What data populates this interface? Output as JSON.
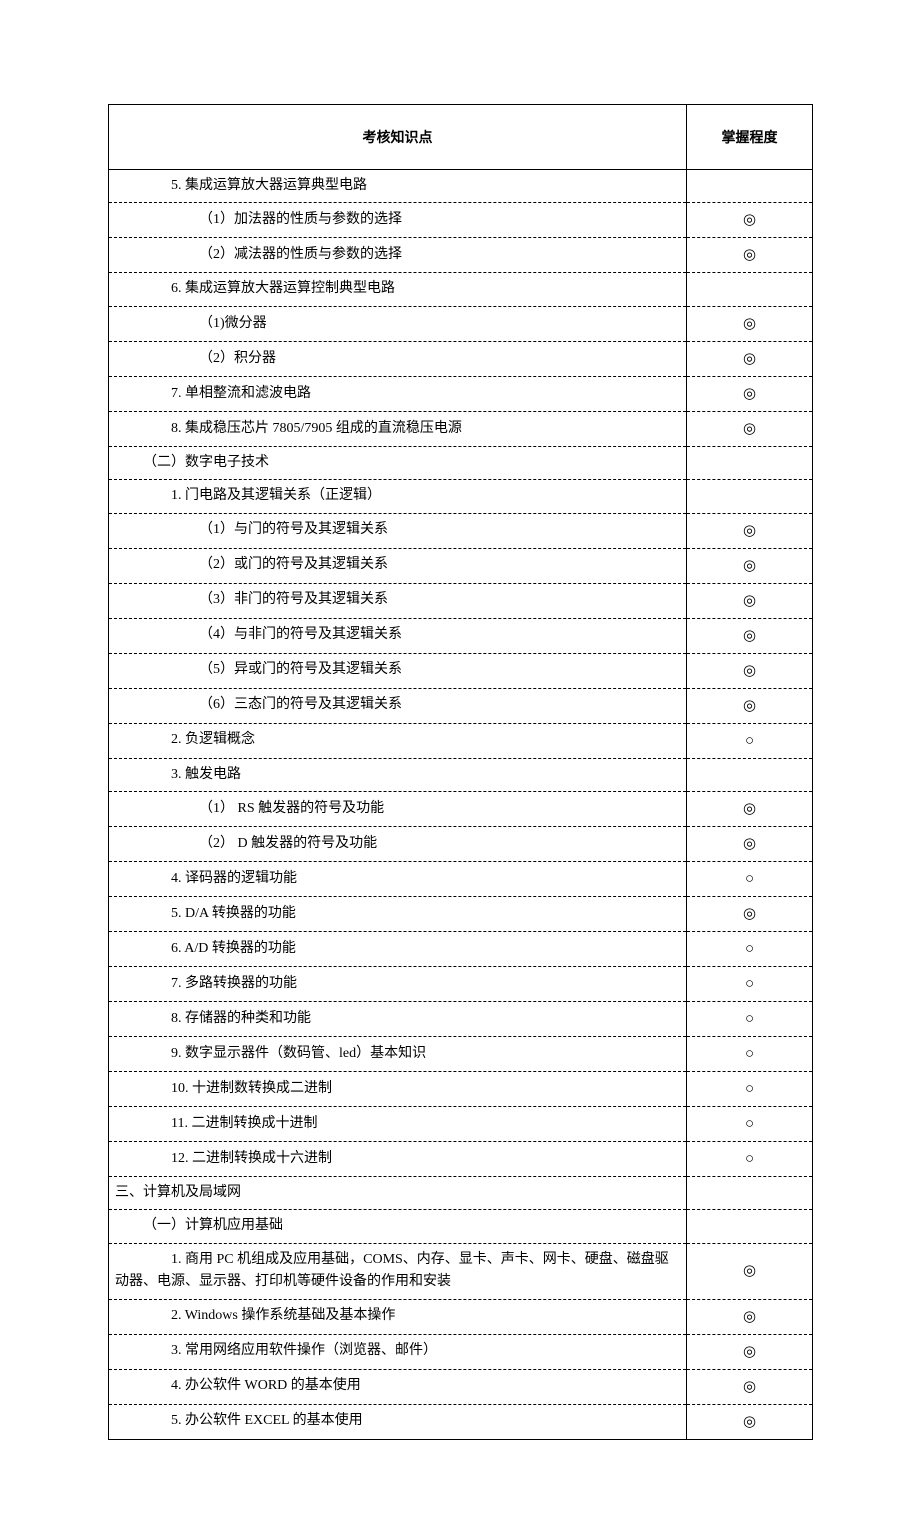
{
  "header": {
    "col1": "考核知识点",
    "col2": "掌握程度"
  },
  "symbols": {
    "doubleCircle": "◎",
    "circle": "○"
  },
  "rows": [
    {
      "text": "5. 集成运算放大器运算典型电路",
      "indent": 2,
      "level": ""
    },
    {
      "text": "（1）加法器的性质与参数的选择",
      "indent": 3,
      "level": "◎"
    },
    {
      "text": "（2）减法器的性质与参数的选择",
      "indent": 3,
      "level": "◎"
    },
    {
      "text": "6. 集成运算放大器运算控制典型电路",
      "indent": 2,
      "level": ""
    },
    {
      "text": "（1)微分器",
      "indent": 3,
      "level": "◎"
    },
    {
      "text": "（2）积分器",
      "indent": 3,
      "level": "◎"
    },
    {
      "text": "7. 单相整流和滤波电路",
      "indent": 2,
      "level": "◎"
    },
    {
      "text": "8. 集成稳压芯片 7805/7905 组成的直流稳压电源",
      "indent": 2,
      "level": "◎"
    },
    {
      "text": "（二）数字电子技术",
      "indent": 1,
      "level": ""
    },
    {
      "text": "1. 门电路及其逻辑关系（正逻辑）",
      "indent": 2,
      "level": ""
    },
    {
      "text": "（1）与门的符号及其逻辑关系",
      "indent": 3,
      "level": "◎"
    },
    {
      "text": "（2）或门的符号及其逻辑关系",
      "indent": 3,
      "level": "◎"
    },
    {
      "text": "（3）非门的符号及其逻辑关系",
      "indent": 3,
      "level": "◎"
    },
    {
      "text": "（4）与非门的符号及其逻辑关系",
      "indent": 3,
      "level": "◎"
    },
    {
      "text": "（5）异或门的符号及其逻辑关系",
      "indent": 3,
      "level": "◎"
    },
    {
      "text": "（6）三态门的符号及其逻辑关系",
      "indent": 3,
      "level": "◎"
    },
    {
      "text": "2. 负逻辑概念",
      "indent": 2,
      "level": "○"
    },
    {
      "text": "3. 触发电路",
      "indent": 2,
      "level": ""
    },
    {
      "text": "（1） RS 触发器的符号及功能",
      "indent": 3,
      "level": "◎"
    },
    {
      "text": "（2） D 触发器的符号及功能",
      "indent": 3,
      "level": "◎"
    },
    {
      "text": "4. 译码器的逻辑功能",
      "indent": 2,
      "level": "○"
    },
    {
      "text": "5.  D/A 转换器的功能",
      "indent": 2,
      "level": "◎"
    },
    {
      "text": "6.  A/D 转换器的功能",
      "indent": 2,
      "level": "○"
    },
    {
      "text": "7. 多路转换器的功能",
      "indent": 2,
      "level": "○"
    },
    {
      "text": "8.  存储器的种类和功能",
      "indent": 2,
      "level": "○"
    },
    {
      "text": "9.  数字显示器件（数码管、led）基本知识",
      "indent": 2,
      "level": "○"
    },
    {
      "text": "10.  十进制数转换成二进制",
      "indent": 2,
      "level": "○"
    },
    {
      "text": "11.  二进制转换成十进制",
      "indent": 2,
      "level": "○"
    },
    {
      "text": "12.  二进制转换成十六进制",
      "indent": 2,
      "level": "○"
    },
    {
      "text": "三、计算机及局域网",
      "indent": 0,
      "level": ""
    },
    {
      "text": "（一）计算机应用基础",
      "indent": 1,
      "level": ""
    },
    {
      "text": "1.  商用 PC 机组成及应用基础，COMS、内存、显卡、声卡、网卡、硬盘、磁盘驱动器、电源、显示器、打印机等硬件设备的作用和安装",
      "indent": 2,
      "hang": true,
      "level": "◎"
    },
    {
      "text": "2.  Windows 操作系统基础及基本操作",
      "indent": 2,
      "level": "◎"
    },
    {
      "text": "3.  常用网络应用软件操作（浏览器、邮件）",
      "indent": 2,
      "level": "◎"
    },
    {
      "text": "4.  办公软件 WORD 的基本使用",
      "indent": 2,
      "level": "◎"
    },
    {
      "text": "5.  办公软件 EXCEL 的基本使用",
      "indent": 2,
      "level": "◎"
    }
  ]
}
